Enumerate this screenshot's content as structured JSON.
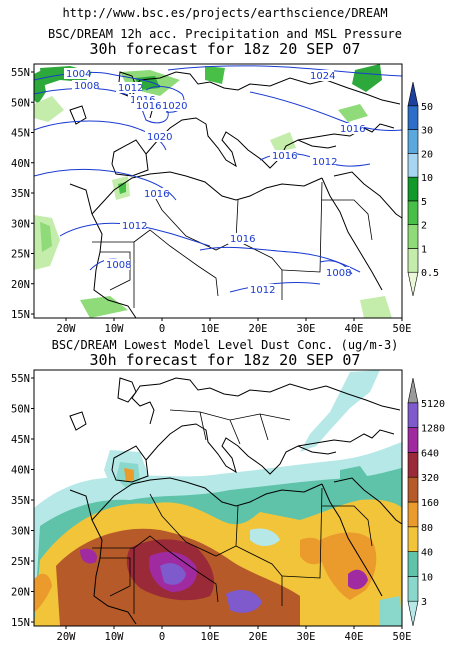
{
  "source_url": "http://www.bsc.es/projects/earthscience/DREAM",
  "panel_top": {
    "title_line1": "BSC/DREAM 12h acc. Precipitation and MSL Pressure",
    "title_line2": "30h forecast for 18z 20 SEP 07",
    "lat_labels": [
      "55N",
      "50N",
      "45N",
      "40N",
      "35N",
      "30N",
      "25N",
      "20N",
      "15N"
    ],
    "lon_labels": [
      "20W",
      "10W",
      "0",
      "10E",
      "20E",
      "30E",
      "40E",
      "50E"
    ],
    "colorbar": {
      "levels": [
        "0.5",
        "1",
        "2",
        "5",
        "10",
        "20",
        "30",
        "50"
      ],
      "colors": [
        "#eaf8d8",
        "#c4ecaa",
        "#8fdb7a",
        "#48c048",
        "#119a2a",
        "#a6d6f2",
        "#5aa8de",
        "#2c6ec8",
        "#1d3f9e"
      ]
    },
    "isobar_labels": [
      "1004",
      "1008",
      "1012",
      "1016",
      "1020",
      "1024",
      "1016",
      "1020",
      "1016",
      "1016",
      "1012",
      "1012",
      "1016",
      "1008",
      "1012",
      "1008",
      "1016"
    ]
  },
  "panel_bottom": {
    "title_line1": "BSC/DREAM Lowest Model Level Dust Conc. (ug/m-3)",
    "title_line2": "30h forecast for 18z 20 SEP 07",
    "lat_labels": [
      "55N",
      "50N",
      "45N",
      "40N",
      "35N",
      "30N",
      "25N",
      "20N",
      "15N"
    ],
    "lon_labels": [
      "20W",
      "10W",
      "0",
      "10E",
      "20E",
      "30E",
      "40E",
      "50E"
    ],
    "colorbar": {
      "levels": [
        "3",
        "10",
        "40",
        "80",
        "160",
        "320",
        "640",
        "1280",
        "5120"
      ],
      "colors": [
        "#b6e8e8",
        "#8ad8cc",
        "#5ec3a8",
        "#f2c43a",
        "#eb9a2c",
        "#b55a28",
        "#9a2a38",
        "#a02aa0",
        "#7f5acc",
        "#9a9a9a"
      ]
    }
  }
}
